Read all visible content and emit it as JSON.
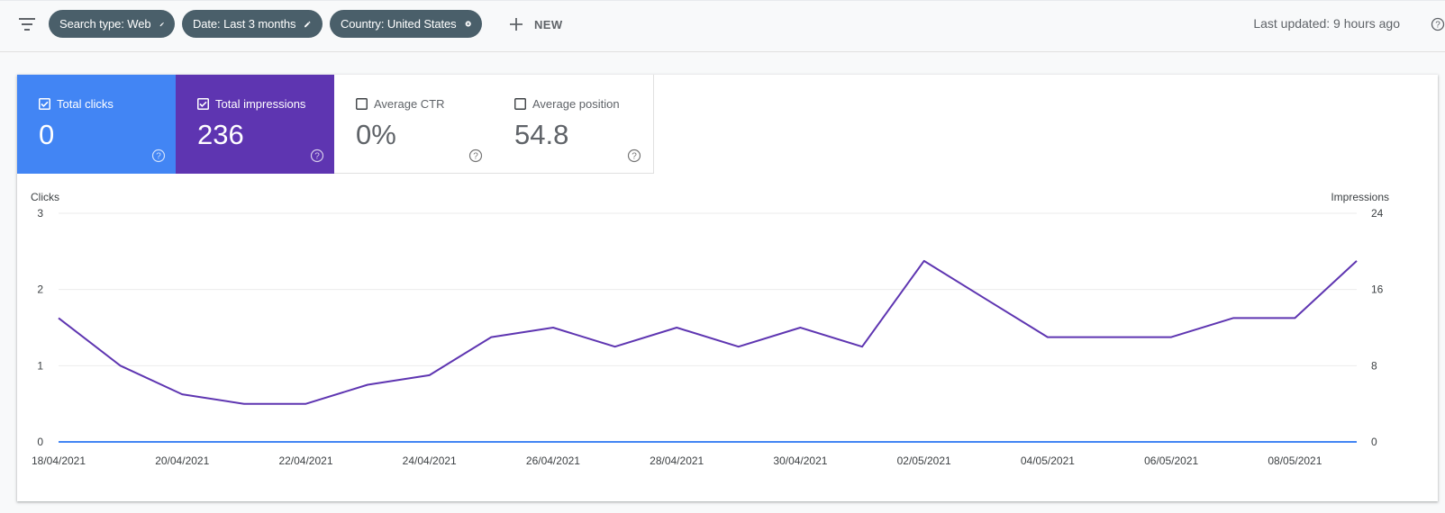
{
  "toolbar": {
    "filter_icon": "filter-list-icon",
    "chips": [
      {
        "label": "Search type: Web",
        "icon": "edit-icon"
      },
      {
        "label": "Date: Last 3 months",
        "icon": "edit-icon"
      },
      {
        "label": "Country: United States",
        "icon": "cancel-icon"
      }
    ],
    "new_label": "NEW",
    "last_updated": "Last updated: 9 hours ago"
  },
  "metrics": [
    {
      "label": "Total clicks",
      "value": "0",
      "checked": true,
      "color": "#4285f4"
    },
    {
      "label": "Total impressions",
      "value": "236",
      "checked": true,
      "color": "#5e35b1"
    },
    {
      "label": "Average CTR",
      "value": "0%",
      "checked": false,
      "color": "#ffffff"
    },
    {
      "label": "Average position",
      "value": "54.8",
      "checked": false,
      "color": "#ffffff"
    }
  ],
  "chart_data": {
    "type": "line",
    "ylabel_left": "Clicks",
    "ylabel_right": "Impressions",
    "y_left_ticks": [
      "0",
      "1",
      "2",
      "3"
    ],
    "y_right_ticks": [
      "0",
      "8",
      "16",
      "24"
    ],
    "y_left_range": [
      0,
      3
    ],
    "y_right_range": [
      0,
      24
    ],
    "x": [
      "18/04/2021",
      "19/04/2021",
      "20/04/2021",
      "21/04/2021",
      "22/04/2021",
      "23/04/2021",
      "24/04/2021",
      "25/04/2021",
      "26/04/2021",
      "27/04/2021",
      "28/04/2021",
      "29/04/2021",
      "30/04/2021",
      "01/05/2021",
      "02/05/2021",
      "03/05/2021",
      "04/05/2021",
      "05/05/2021",
      "06/05/2021",
      "07/05/2021",
      "08/05/2021",
      "09/05/2021"
    ],
    "x_tick_labels": [
      "18/04/2021",
      "20/04/2021",
      "22/04/2021",
      "24/04/2021",
      "26/04/2021",
      "28/04/2021",
      "30/04/2021",
      "02/05/2021",
      "04/05/2021",
      "06/05/2021",
      "08/05/2021"
    ],
    "grid": true,
    "series": [
      {
        "name": "Total clicks",
        "axis": "left",
        "color": "#4285f4",
        "values": [
          0,
          0,
          0,
          0,
          0,
          0,
          0,
          0,
          0,
          0,
          0,
          0,
          0,
          0,
          0,
          0,
          0,
          0,
          0,
          0,
          0,
          0
        ]
      },
      {
        "name": "Total impressions",
        "axis": "right",
        "color": "#5e35b1",
        "values": [
          13,
          8,
          5,
          4,
          4,
          6,
          7,
          11,
          12,
          10,
          12,
          10,
          12,
          10,
          19,
          15,
          11,
          11,
          11,
          13,
          13,
          19
        ]
      }
    ]
  }
}
